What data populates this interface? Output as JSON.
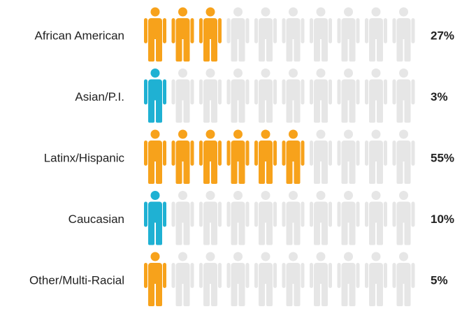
{
  "chart_data": {
    "type": "pictograph",
    "categories": [
      "African American",
      "Asian/P.I.",
      "Latinx/Hispanic",
      "Caucasian",
      "Other/Multi-Racial"
    ],
    "values": [
      27,
      3,
      55,
      10,
      5
    ],
    "value_labels": [
      "27%",
      "3%",
      "55%",
      "10%",
      "5%"
    ],
    "colors": [
      "#f7a21b",
      "#1fb1d3",
      "#f7a21b",
      "#1fb1d3",
      "#f7a21b"
    ],
    "empty_color": "#e6e6e6",
    "xlim": [
      0,
      100
    ]
  }
}
